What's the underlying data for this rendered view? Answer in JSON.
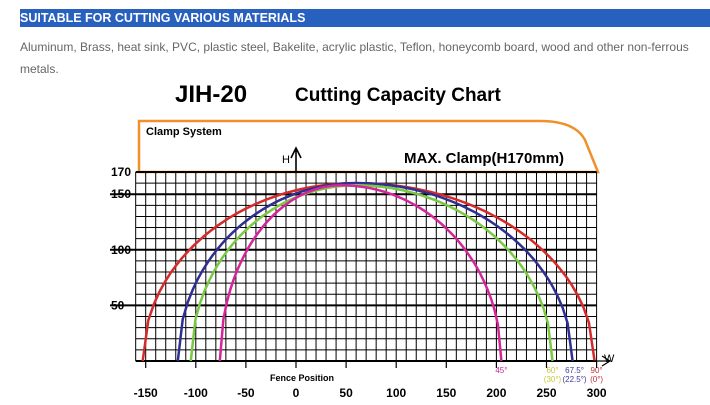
{
  "section": {
    "title": "SUITABLE FOR CUTTING VARIOUS MATERIALS",
    "description": "Aluminum, Brass, heat sink, PVC, plastic steel, Bakelite, acrylic plastic, Teflon, honeycomb board, wood and other non-ferrous metals."
  },
  "chart_data": {
    "type": "line",
    "model": "JIH-20",
    "title": "Cutting Capacity Chart",
    "clamp_label": "Clamp System",
    "clamp_max": "MAX. Clamp(H170mm)",
    "xlabel": "Fence Position",
    "ylabel": "H",
    "x_axis_letter": "W",
    "xlim": [
      -150,
      300
    ],
    "ylim": [
      0,
      170
    ],
    "xticks": [
      "-150",
      "-100",
      "-50",
      "0",
      "50",
      "100",
      "150",
      "200",
      "250",
      "300"
    ],
    "yticks": [
      "170",
      "150",
      "100",
      "50"
    ],
    "grid": true,
    "series": [
      {
        "name": "90°",
        "sub": "(0°)",
        "color": "#d42a2a",
        "start": -153,
        "end": 298,
        "peak": 160,
        "peak_x": 60
      },
      {
        "name": "67.5°",
        "sub": "(22.5°)",
        "color": "#2e2e93",
        "start": -118,
        "end": 276,
        "peak": 160,
        "peak_x": 60
      },
      {
        "name": "60°",
        "sub": "(30°)",
        "color": "#7ac943",
        "start": -105,
        "end": 256,
        "peak": 158,
        "peak_x": 60
      },
      {
        "name": "45°",
        "sub": "",
        "color": "#d4259a",
        "start": -76,
        "end": 205,
        "peak": 158,
        "peak_x": 45
      }
    ],
    "label_colors": [
      "#c0303a",
      "#3a3a9a",
      "#c8c83a",
      "#d4259a"
    ]
  }
}
